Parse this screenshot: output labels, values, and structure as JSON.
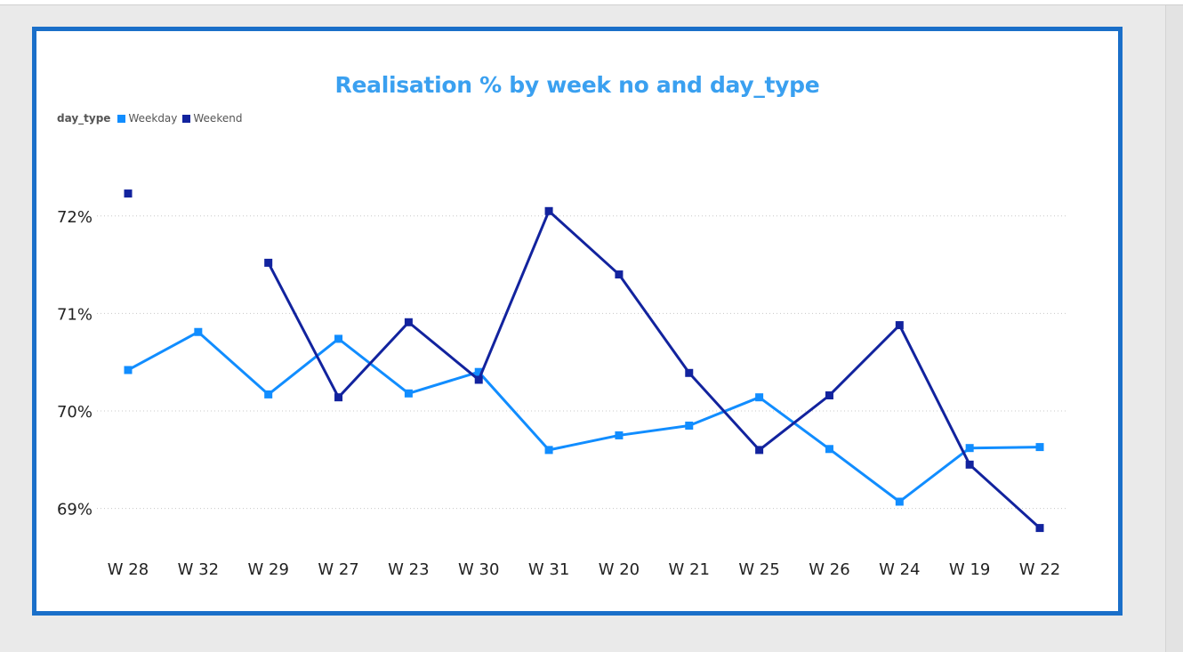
{
  "chart_data": {
    "type": "line",
    "title": "Realisation % by week no and day_type",
    "legend_title": "day_type",
    "legend_placement": "top-left",
    "xlabel": "",
    "ylabel": "",
    "categories": [
      "W 28",
      "W 32",
      "W 29",
      "W 27",
      "W 23",
      "W 30",
      "W 31",
      "W 20",
      "W 21",
      "W 25",
      "W 26",
      "W 24",
      "W 19",
      "W 22"
    ],
    "yticks": [
      69,
      70,
      71,
      72
    ],
    "ytick_labels": [
      "69%",
      "70%",
      "71%",
      "72%"
    ],
    "ylim": [
      68.55,
      72.6
    ],
    "grid": true,
    "series": [
      {
        "name": "Weekday",
        "color": "#118dff",
        "values": [
          70.42,
          70.81,
          70.17,
          70.74,
          70.18,
          70.4,
          69.6,
          69.75,
          69.85,
          70.14,
          69.61,
          69.07,
          69.62,
          69.63
        ]
      },
      {
        "name": "Weekend",
        "color": "#12239e",
        "values": [
          72.23,
          null,
          71.52,
          70.14,
          70.91,
          70.32,
          72.05,
          71.4,
          70.39,
          69.6,
          70.16,
          70.88,
          69.45,
          68.8
        ]
      }
    ]
  }
}
